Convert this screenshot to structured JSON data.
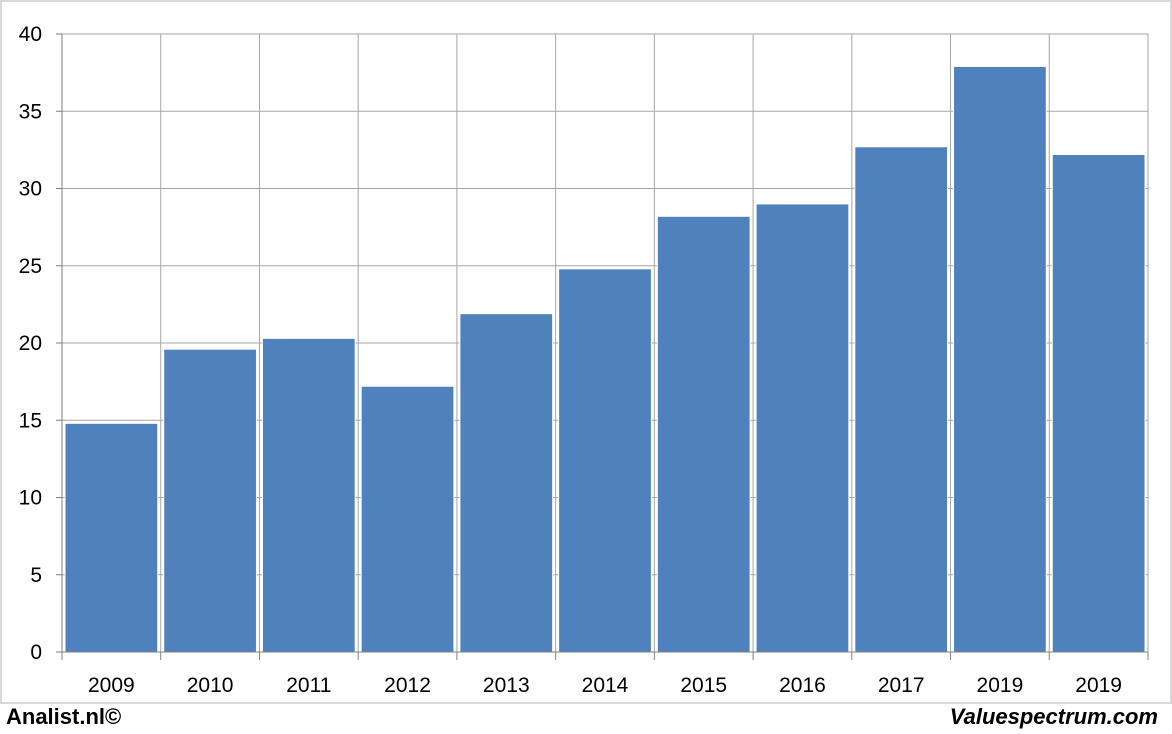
{
  "chart_data": {
    "type": "bar",
    "title": "",
    "xlabel": "",
    "ylabel": "",
    "categories": [
      "2009",
      "2010",
      "2011",
      "2012",
      "2013",
      "2014",
      "2015",
      "2016",
      "2017",
      "2019",
      "2019"
    ],
    "values": [
      14.8,
      19.6,
      20.3,
      17.2,
      21.9,
      24.8,
      28.2,
      29.0,
      32.7,
      37.9,
      32.2
    ],
    "ylim": [
      0,
      40
    ],
    "yticks": [
      0,
      5,
      10,
      15,
      20,
      25,
      30,
      35,
      40
    ],
    "grid": true,
    "legend": "none",
    "colors": {
      "bar": "#4f81bd",
      "grid": "#a6a6a6",
      "frame": "#d9d9d9"
    }
  },
  "footer": {
    "left": "Analist.nl©",
    "right": "Valuespectrum.com"
  }
}
